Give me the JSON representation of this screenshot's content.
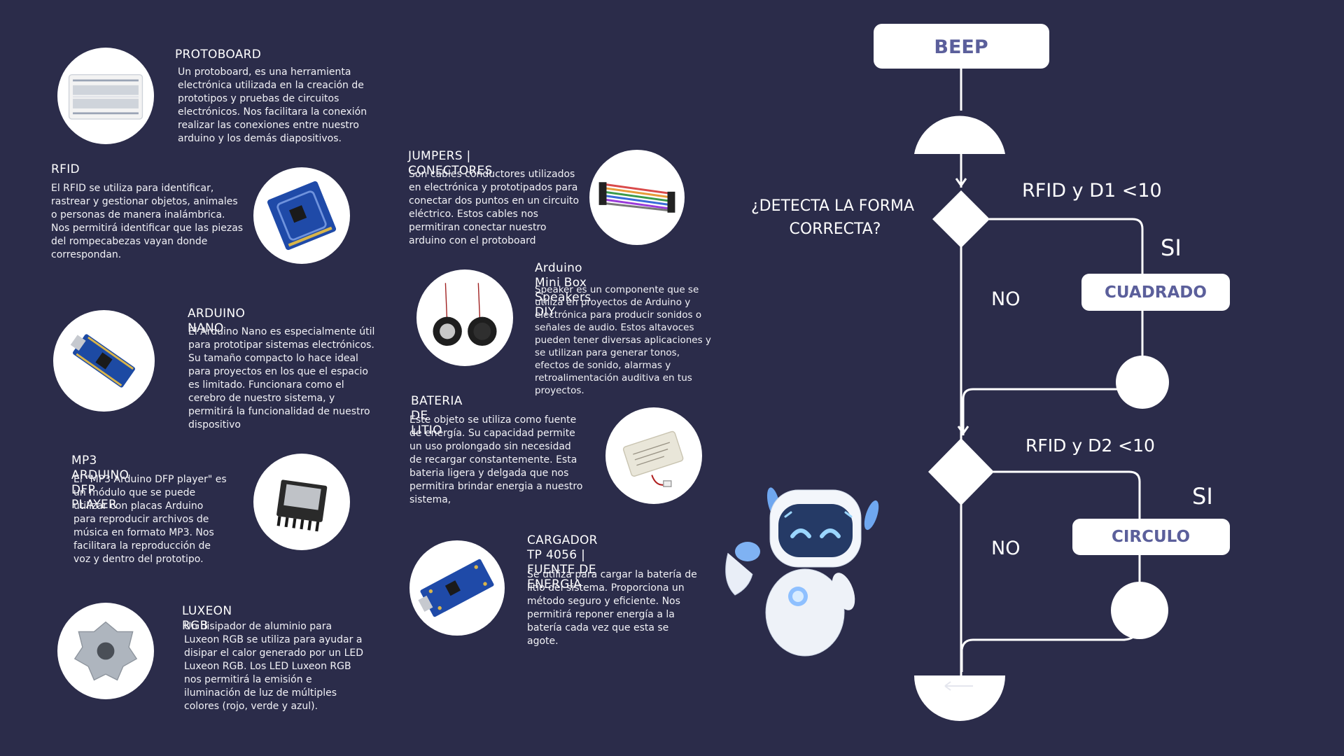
{
  "components": {
    "protoboard": {
      "title": "PROTOBOARD",
      "description": "Un protoboard, es una herramienta electrónica utilizada en la creación de prototipos y pruebas de circuitos electrónicos.  Nos facilitara la conexión realizar las conexiones entre nuestro arduino y los demás diapositivos."
    },
    "rfid": {
      "title": "RFID",
      "description": "El RFID  se utiliza para identificar, rastrear y gestionar objetos, animales o personas de manera inalámbrica. Nos permitirá identificar que las piezas del rompecabezas vayan donde correspondan."
    },
    "arduino_nano": {
      "title": "ARDUINO NANO",
      "description": "El Arduino Nano es especialmente útil para prototipar sistemas electrónicos. Su tamaño compacto lo hace ideal para proyectos en los que el espacio es limitado. Funcionara como el cerebro de nuestro sistema, y permitirá la funcionalidad de nuestro dispositivo"
    },
    "mp3_player": {
      "title": "MP3 ARDUINO DFP PLAYER",
      "description": "El \"MP3 Arduino DFP player\" es un módulo que se puede utilizar con placas Arduino para reproducir archivos de música en formato MP3. Nos facilitara la reproducción de voz y  dentro del prototipo."
    },
    "luxeon": {
      "title": "LUXEON RGB",
      "description": "Un disipador de aluminio para Luxeon RGB se utiliza para ayudar a disipar el calor generado por un LED Luxeon RGB. Los LED Luxeon RGB nos permitirá la emisión e iluminación de luz  de múltiples colores (rojo, verde y azul)."
    },
    "jumpers": {
      "title": "JUMPERS | CONECTORES",
      "description": "Son cables conductores utilizados en electrónica y prototipados para conectar dos puntos en un circuito eléctrico. Estos cables nos permitiran conectar nuestro arduino con el protoboard"
    },
    "speakers": {
      "title": "Arduino Mini Box Speakers DIY",
      "description": "Speaker es un componente que se utiliza en proyectos de Arduino y electrónica para producir sonidos o señales de audio. Estos altavoces pueden tener diversas aplicaciones y se utilizan para generar tonos, efectos de sonido, alarmas y retroalimentación auditiva en tus proyectos."
    },
    "battery": {
      "title": "BATERIA DE LITIO",
      "description": "Este objeto se utiliza como fuente de energía. Su capacidad permite un uso prolongado sin necesidad de recargar constantemente. Esta bateria ligera y delgada que nos permitira brindar energia a nuestro sistema,"
    },
    "charger": {
      "title": "CARGADOR TP 4056 |\nFUENTE DE ENERGIA",
      "description": "Se utiliza para cargar la batería de litio del sistema. Proporciona un método seguro y eficiente.  Nos permitirá reponer energía a la batería cada vez que esta se agote."
    }
  },
  "flowchart": {
    "start_label": "BEEP",
    "question": "¿DETECTA LA FORMA\nCORRECTA?",
    "condition_1": "RFID y D1 <10",
    "condition_2": "RFID y D2 <10",
    "yes_1": "SI",
    "yes_2": "SI",
    "no_1": "NO",
    "no_2": "NO",
    "result_1": "CUADRADO",
    "result_2": "CIRCULO"
  },
  "colors": {
    "background": "#2b2c4a",
    "box": "#ffffff",
    "box_text": "#5b5f9b",
    "line": "#ffffff"
  }
}
